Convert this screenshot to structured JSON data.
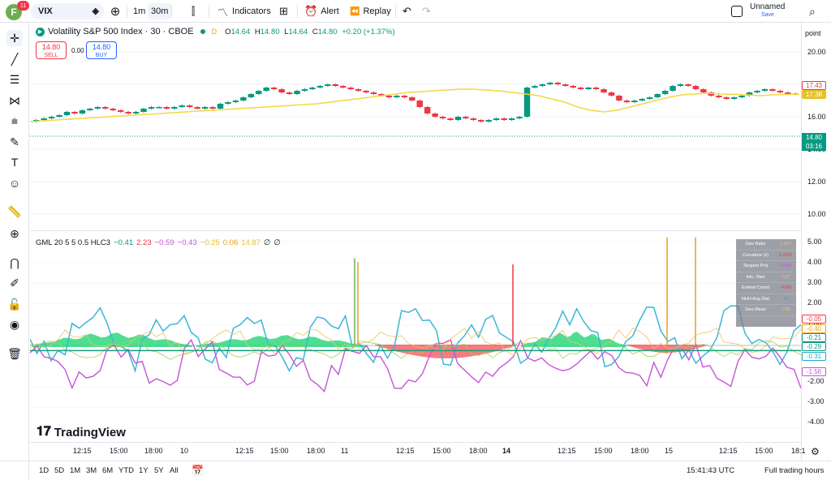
{
  "header": {
    "avatar_letter": "F",
    "avatar_badge": "11",
    "symbol": "VIX",
    "intervals": [
      "1m",
      "30m"
    ],
    "indicators_label": "Indicators",
    "alert_label": "Alert",
    "replay_label": "Replay",
    "layout_name": "Unnamed",
    "save_label": "Save"
  },
  "legend": {
    "title": "Volatility S&P 500 Index · 30 · CBOE",
    "flag": "D",
    "o_label": "O",
    "o": "14.64",
    "h_label": "H",
    "h": "14.80",
    "l_label": "L",
    "l": "14.64",
    "c_label": "C",
    "c": "14.80",
    "change": "+0.20 (+1.37%)"
  },
  "trade": {
    "sell_price": "14.80",
    "sell_label": "SELL",
    "spread": "0.00",
    "buy_price": "14.80",
    "buy_label": "BUY"
  },
  "axis": {
    "unit_label": "point",
    "price_ticks": [
      "20.00",
      "18.00",
      "16.00",
      "14.00",
      "12.00",
      "10.00"
    ],
    "ind_ticks": [
      "5.00",
      "4.00",
      "3.00",
      "2.00",
      "1.00",
      "-2.00",
      "-3.00",
      "-4.00"
    ],
    "price_labels": [
      {
        "text": "17.43",
        "color": "#f23645"
      },
      {
        "text": "17.38",
        "color": "#e6c229"
      },
      {
        "text": "14.80",
        "color": "#089981"
      },
      {
        "text": "03:16",
        "color": "#089981"
      }
    ],
    "ind_labels": [
      {
        "text": "-0.05",
        "color": "#f23645"
      },
      {
        "text": "-0.40",
        "color": "#f0a020"
      },
      {
        "text": "-0.21",
        "color": "#089981"
      },
      {
        "text": "-0.29",
        "color": "#089981"
      },
      {
        "text": "-0.31",
        "color": "#22a8c7"
      },
      {
        "text": "-1.56",
        "color": "#c455d6"
      }
    ]
  },
  "indicator": {
    "name": "GML 20 5 5 0.5 HLC3",
    "values": [
      {
        "text": "−0.41",
        "color": "#089981"
      },
      {
        "text": "2.23",
        "color": "#f23645"
      },
      {
        "text": "−0.59",
        "color": "#c455d6"
      },
      {
        "text": "−0.43",
        "color": "#c455d6"
      },
      {
        "text": "−0.25",
        "color": "#e6c229"
      },
      {
        "text": "0.06",
        "color": "#e6a020"
      },
      {
        "text": "14.87",
        "color": "#e6c229"
      },
      {
        "text": "∅",
        "color": "#131722"
      },
      {
        "text": "∅",
        "color": "#131722"
      }
    ]
  },
  "geo_table": [
    {
      "k": "Geo Ratio",
      "v": "1.437"
    },
    {
      "k": "Curvature (z)",
      "v": "2.2311"
    },
    {
      "k": "Tangent Proj",
      "v": "-5095"
    },
    {
      "k": "Intc. Dies",
      "v": "1.87"
    },
    {
      "k": "Embed Coord",
      "v": "-4268"
    },
    {
      "k": "NHH Ang Dist",
      "v": ".07"
    },
    {
      "k": "Geo Mean",
      "v": "1.09"
    }
  ],
  "brand": "TradingView",
  "time_ticks": [
    {
      "t": "12:15",
      "bold": false
    },
    {
      "t": "15:00",
      "bold": false
    },
    {
      "t": "18:00",
      "bold": false
    },
    {
      "t": "10",
      "bold": false
    },
    {
      "t": "12:15",
      "bold": false
    },
    {
      "t": "15:00",
      "bold": false
    },
    {
      "t": "18:00",
      "bold": false
    },
    {
      "t": "11",
      "bold": false
    },
    {
      "t": "12:15",
      "bold": false
    },
    {
      "t": "15:00",
      "bold": false
    },
    {
      "t": "18:00",
      "bold": false
    },
    {
      "t": "14",
      "bold": true
    },
    {
      "t": "12:15",
      "bold": false
    },
    {
      "t": "15:00",
      "bold": false
    },
    {
      "t": "18:00",
      "bold": false
    },
    {
      "t": "15",
      "bold": false
    },
    {
      "t": "12:15",
      "bold": false
    },
    {
      "t": "15:00",
      "bold": false
    },
    {
      "t": "18:1",
      "bold": false
    }
  ],
  "ranges": [
    "1D",
    "5D",
    "1M",
    "3M",
    "6M",
    "YTD",
    "1Y",
    "5Y",
    "All"
  ],
  "status": {
    "clock": "15:41:43 UTC",
    "session": "Full trading hours"
  },
  "colors": {
    "up": "#089981",
    "down": "#f23645",
    "ma": "#f5d742",
    "accent": "#2962ff"
  },
  "chart_data": {
    "type": "candlestick",
    "price_ylim": [
      10,
      20
    ],
    "close": [
      15.8,
      15.9,
      16.0,
      16.1,
      16.3,
      16.2,
      16.4,
      16.5,
      16.6,
      16.5,
      16.4,
      16.3,
      16.2,
      16.3,
      16.5,
      16.6,
      16.6,
      16.5,
      16.6,
      16.7,
      16.6,
      16.5,
      16.6,
      16.5,
      16.8,
      16.9,
      17.0,
      17.2,
      17.4,
      17.6,
      17.8,
      17.7,
      17.5,
      17.4,
      17.6,
      17.7,
      17.8,
      17.9,
      18.0,
      17.9,
      17.8,
      17.7,
      17.6,
      17.5,
      17.4,
      17.3,
      17.2,
      17.3,
      17.2,
      17.0,
      16.6,
      16.2,
      16.0,
      15.9,
      15.8,
      16.0,
      15.9,
      15.8,
      15.7,
      15.8,
      15.9,
      15.8,
      15.9,
      16.0,
      17.8,
      17.9,
      18.0,
      18.1,
      18.0,
      17.9,
      17.8,
      17.7,
      17.8,
      17.7,
      17.5,
      17.3,
      17.0,
      16.9,
      17.0,
      17.1,
      17.2,
      17.4,
      17.6,
      17.9,
      18.0,
      17.9,
      17.7,
      17.5,
      17.3,
      17.2,
      17.1,
      17.2,
      17.3,
      17.5,
      17.6,
      17.7,
      17.6,
      17.5,
      17.4,
      17.43
    ],
    "ma_values": [
      15.7,
      15.75,
      15.8,
      15.85,
      15.9,
      15.95,
      16.0,
      16.05,
      16.1,
      16.15,
      16.2,
      16.25,
      16.3,
      16.35,
      16.4,
      16.45,
      16.5,
      16.55,
      16.6,
      16.65,
      16.7,
      16.75,
      16.8,
      16.9,
      17.0,
      17.1,
      17.2,
      17.3,
      17.4,
      17.5,
      17.55,
      17.6,
      17.65,
      17.7,
      17.7,
      17.65,
      17.6,
      17.5,
      17.4,
      17.3,
      17.1,
      16.9,
      16.6,
      16.4,
      16.3,
      16.4,
      16.6,
      16.8,
      17.0,
      17.2,
      17.35,
      17.4,
      17.45,
      17.4,
      17.38,
      17.35,
      17.3,
      17.35,
      17.38,
      17.38
    ],
    "ind_ylim": [
      -4,
      5
    ]
  }
}
